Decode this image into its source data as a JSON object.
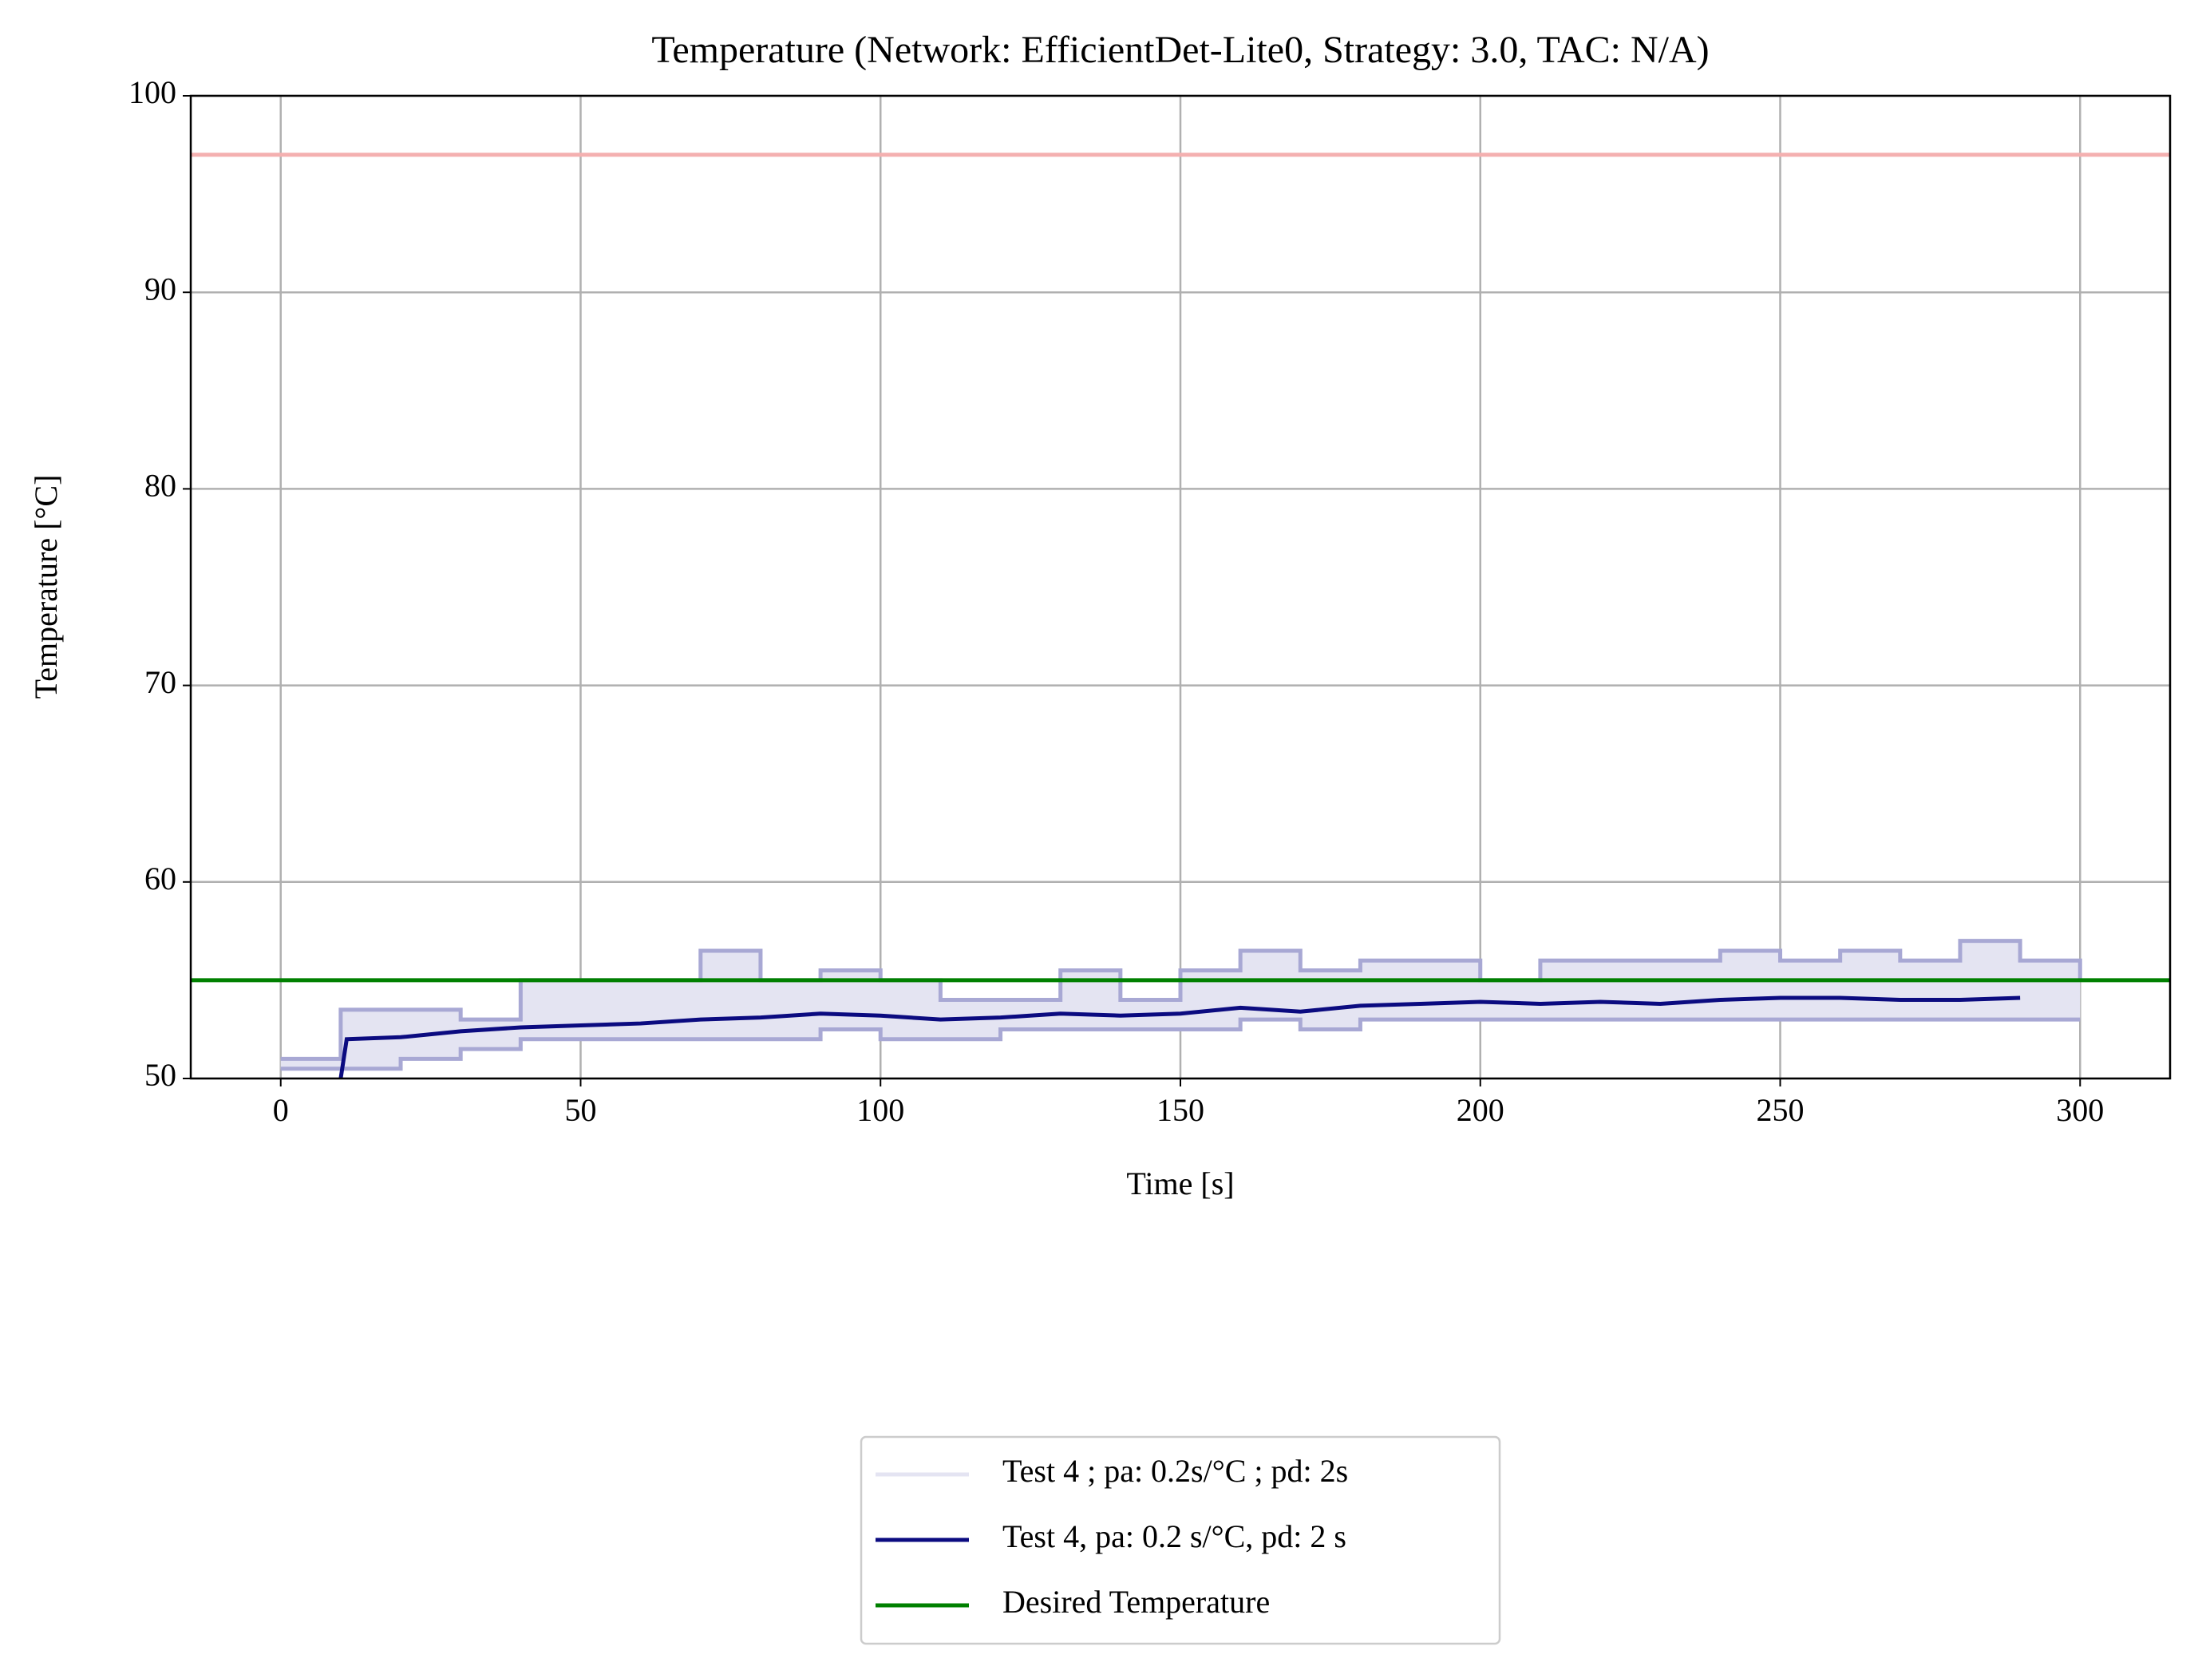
{
  "chart_data": {
    "type": "line",
    "title": "Temperature (Network: EfficientDet-Lite0, Strategy: 3.0, TAC: N/A)",
    "x_label": "Time [s]",
    "y_label": "Temperature [°C]",
    "xlim": [
      -15,
      315
    ],
    "ylim": [
      50,
      100
    ],
    "xticks": [
      0,
      50,
      100,
      150,
      200,
      250,
      300
    ],
    "yticks": [
      50,
      60,
      70,
      80,
      90,
      100
    ],
    "grid": true,
    "band": {
      "name": "Test 4 ; pa: 0.2s/°C ; pd: 2s",
      "color": "#e4e4f2",
      "edge_color": "#a8a8d4",
      "x": [
        0,
        10,
        20,
        30,
        40,
        50,
        60,
        70,
        80,
        90,
        100,
        110,
        120,
        130,
        140,
        150,
        160,
        170,
        180,
        190,
        200,
        210,
        220,
        230,
        240,
        250,
        260,
        270,
        280,
        290,
        300
      ],
      "high": [
        51,
        53.5,
        53.5,
        53,
        55,
        55,
        55,
        56.5,
        55,
        55.5,
        55,
        54,
        54,
        55.5,
        54,
        55.5,
        56.5,
        55.5,
        56,
        56,
        55,
        56,
        56,
        56,
        56.5,
        56,
        56.5,
        56,
        57,
        56,
        55
      ],
      "low": [
        50.5,
        50.5,
        51,
        51.5,
        52,
        52,
        52,
        52,
        52,
        52.5,
        52,
        52,
        52.5,
        52.5,
        52.5,
        52.5,
        53,
        52.5,
        53,
        53,
        53,
        53,
        53,
        53,
        53,
        53,
        53,
        53,
        53,
        53,
        53
      ]
    },
    "series": [
      {
        "name": "Test 4, pa: 0.2 s/°C, pd: 2 s",
        "color": "#0b0b80",
        "x": [
          10,
          11,
          20,
          30,
          40,
          50,
          60,
          70,
          80,
          90,
          100,
          110,
          120,
          130,
          140,
          150,
          160,
          170,
          180,
          190,
          200,
          210,
          220,
          230,
          240,
          250,
          260,
          270,
          280,
          290
        ],
        "values": [
          50,
          52,
          52.1,
          52.4,
          52.6,
          52.7,
          52.8,
          53.0,
          53.1,
          53.3,
          53.2,
          53.0,
          53.1,
          53.3,
          53.2,
          53.3,
          53.6,
          53.4,
          53.7,
          53.8,
          53.9,
          53.8,
          53.9,
          53.8,
          54.0,
          54.1,
          54.1,
          54.0,
          54.0,
          54.1
        ]
      }
    ],
    "hlines": [
      {
        "name": "Desired Temperature",
        "y": 55,
        "color": "#008000"
      },
      {
        "y": 97,
        "color": "#f4b0b0"
      }
    ]
  }
}
